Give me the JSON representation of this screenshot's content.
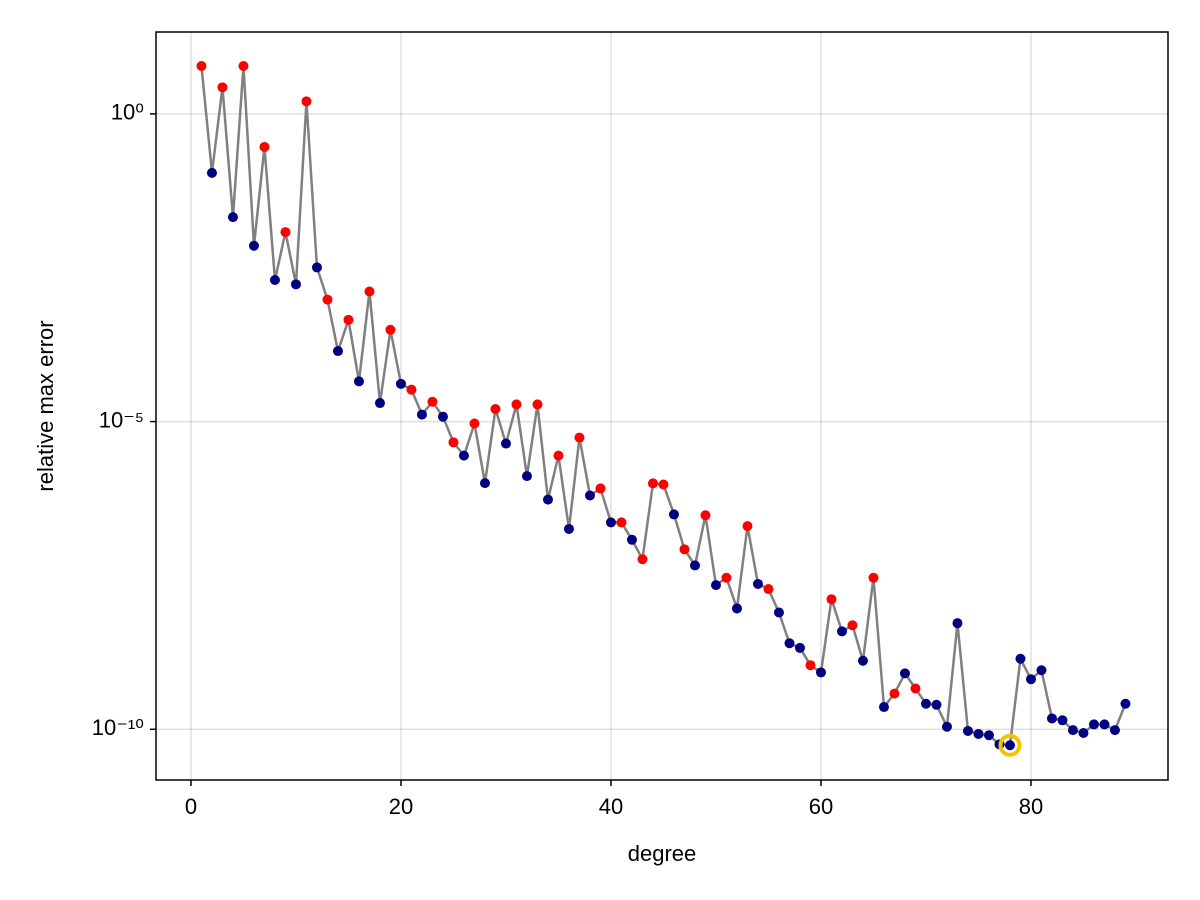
{
  "chart_data": {
    "type": "line",
    "x_label": "degree",
    "y_label": "relative max error",
    "log_y": true,
    "grid": true,
    "xlim": [
      -3.33,
      93.05
    ],
    "ylim": [
      1.5e-11,
      21.4
    ],
    "xticks": [
      0,
      20,
      40,
      60,
      80
    ],
    "yticks": [
      {
        "value": 1,
        "label": "10⁰"
      },
      {
        "value": 1e-05,
        "label": "10⁻⁵"
      },
      {
        "value": 1e-10,
        "label": "10⁻¹⁰"
      }
    ],
    "x": [
      1,
      2,
      3,
      4,
      5,
      6,
      7,
      8,
      9,
      10,
      11,
      12,
      13,
      14,
      15,
      16,
      17,
      18,
      19,
      20,
      21,
      22,
      23,
      24,
      25,
      26,
      27,
      28,
      29,
      30,
      31,
      32,
      33,
      34,
      35,
      36,
      37,
      38,
      39,
      40,
      41,
      42,
      43,
      44,
      45,
      46,
      47,
      48,
      49,
      50,
      51,
      52,
      53,
      54,
      55,
      56,
      57,
      58,
      59,
      60,
      61,
      62,
      63,
      64,
      65,
      66,
      67,
      68,
      69,
      70,
      71,
      72,
      73,
      74,
      75,
      76,
      77,
      78,
      79,
      80,
      81,
      82,
      83,
      84,
      85,
      86,
      87,
      88,
      89
    ],
    "highlight_x": 78,
    "highlight_color": "#f5c400",
    "series": [
      {
        "color": "#808080",
        "values": [
          6.0,
          0.11,
          2.7,
          0.021,
          6.0,
          0.0072,
          0.29,
          0.002,
          0.012,
          0.0017,
          1.6,
          0.0032,
          0.00096,
          0.00014,
          0.00045,
          4.5e-05,
          0.0013,
          2e-05,
          0.00031,
          4.1e-05,
          3.3e-05,
          1.3e-05,
          2.1e-05,
          1.2e-05,
          4.6e-06,
          2.8e-06,
          9.3e-06,
          1e-06,
          1.6e-05,
          4.4e-06,
          1.9e-05,
          1.3e-06,
          1.9e-05,
          5.4e-07,
          2.8e-06,
          1.8e-07,
          5.5e-06,
          6.3e-07,
          8.2e-07,
          2.3e-07,
          2.3e-07,
          1.2e-07,
          5.8e-08,
          9.9e-07,
          9.5e-07,
          3.1e-07,
          8.4e-08,
          4.6e-08,
          3e-07,
          2.2e-08,
          2.9e-08,
          9.2e-09,
          2e-07,
          2.3e-08,
          1.9e-08,
          7.9e-09,
          2.5e-09,
          2.1e-09,
          1.1e-09,
          8.4e-10,
          1.3e-08,
          3.9e-09,
          4.9e-09,
          1.3e-09,
          2.9e-08,
          2.3e-10,
          3.8e-10,
          8.1e-10,
          4.6e-10,
          2.6e-10,
          2.5e-10,
          1.1e-10,
          5.3e-09,
          9.4e-11,
          8.4e-11,
          8e-11,
          5.7e-11,
          5.5e-11,
          1.4e-09,
          6.5e-10,
          9.1e-10,
          1.5e-10,
          1.4e-10,
          9.7e-11,
          8.7e-11,
          1.2e-10,
          1.2e-10,
          9.7e-11,
          2.6e-10
        ],
        "marker_colors": [
          "red",
          "navy",
          "red",
          "navy",
          "red",
          "navy",
          "red",
          "navy",
          "red",
          "navy",
          "red",
          "navy",
          "red",
          "navy",
          "red",
          "navy",
          "red",
          "navy",
          "red",
          "navy",
          "red",
          "navy",
          "red",
          "navy",
          "red",
          "navy",
          "red",
          "navy",
          "red",
          "navy",
          "red",
          "navy",
          "red",
          "navy",
          "red",
          "navy",
          "red",
          "navy",
          "red",
          "navy",
          "red",
          "navy",
          "red",
          "red",
          "red",
          "navy",
          "red",
          "navy",
          "red",
          "navy",
          "red",
          "navy",
          "red",
          "navy",
          "red",
          "navy",
          "navy",
          "navy",
          "red",
          "navy",
          "red",
          "navy",
          "red",
          "navy",
          "red",
          "navy",
          "red",
          "navy",
          "red",
          "navy",
          "navy",
          "navy",
          "navy",
          "navy",
          "navy",
          "navy",
          "navy",
          "navy",
          "navy",
          "navy",
          "navy",
          "navy",
          "navy",
          "navy",
          "navy",
          "navy",
          "navy",
          "navy",
          "navy"
        ]
      }
    ]
  }
}
